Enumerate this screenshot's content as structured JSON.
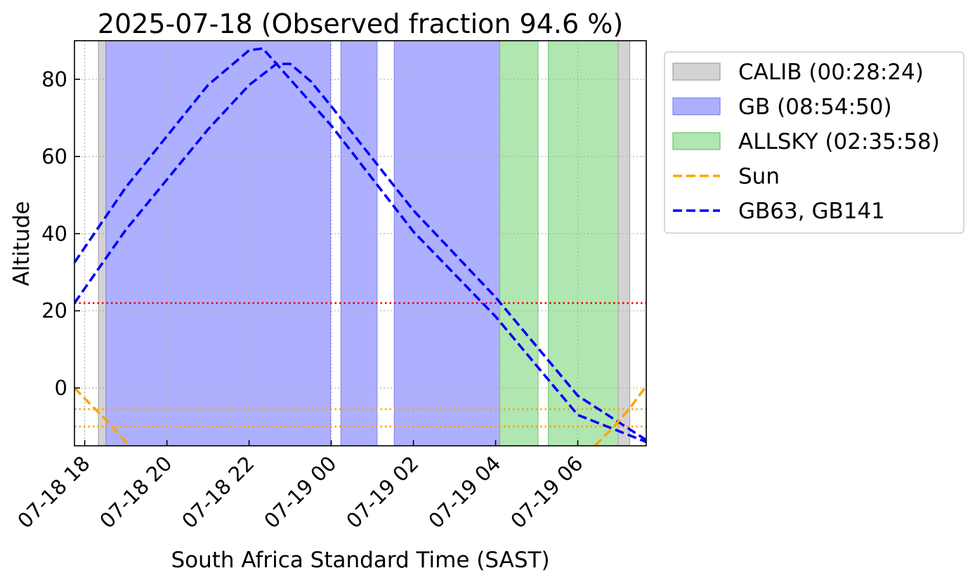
{
  "chart_data": {
    "type": "line",
    "title": "2025-07-18 (Observed fraction 94.6 %)",
    "xlabel": "South Africa Standard Time (SAST)",
    "ylabel": "Altitude",
    "x_axis_type": "datetime",
    "xlim": [
      "2025-07-18T17:45",
      "2025-07-19T07:40"
    ],
    "ylim": [
      -15,
      90
    ],
    "xticks": [
      {
        "t": "2025-07-18T18:00",
        "label": "07-18 18"
      },
      {
        "t": "2025-07-18T20:00",
        "label": "07-18 20"
      },
      {
        "t": "2025-07-18T22:00",
        "label": "07-18 22"
      },
      {
        "t": "2025-07-19T00:00",
        "label": "07-19 00"
      },
      {
        "t": "2025-07-19T02:00",
        "label": "07-19 02"
      },
      {
        "t": "2025-07-19T04:00",
        "label": "07-19 04"
      },
      {
        "t": "2025-07-19T06:00",
        "label": "07-19 06"
      }
    ],
    "yticks": [
      0,
      20,
      40,
      60,
      80
    ],
    "grid": true,
    "legend_position": "outside-right",
    "colors": {
      "calib": "#d3d3d3",
      "gb": "#aeb0ff",
      "allsky": "#b0e6b0",
      "sun": "#ffa500",
      "gb_line": "#0000ff",
      "threshold": "#ff0000"
    },
    "spans": [
      {
        "name": "CALIB",
        "start": "2025-07-18T18:20",
        "end": "2025-07-18T18:31"
      },
      {
        "name": "GB",
        "start": "2025-07-18T18:31",
        "end": "2025-07-18T23:59"
      },
      {
        "name": "GB",
        "start": "2025-07-19T00:14",
        "end": "2025-07-19T01:07"
      },
      {
        "name": "GB",
        "start": "2025-07-19T01:32",
        "end": "2025-07-19T04:06"
      },
      {
        "name": "ALLSKY",
        "start": "2025-07-19T04:06",
        "end": "2025-07-19T05:02"
      },
      {
        "name": "ALLSKY",
        "start": "2025-07-19T05:17",
        "end": "2025-07-19T06:59"
      },
      {
        "name": "CALIB",
        "start": "2025-07-19T06:59",
        "end": "2025-07-19T07:16"
      }
    ],
    "legend": [
      {
        "label": "CALIB (00:28:24)",
        "kind": "patch",
        "color_key": "calib"
      },
      {
        "label": "GB (08:54:50)",
        "kind": "patch",
        "color_key": "gb"
      },
      {
        "label": "ALLSKY (02:35:58)",
        "kind": "patch",
        "color_key": "allsky"
      },
      {
        "label": "Sun",
        "kind": "line",
        "color_key": "sun"
      },
      {
        "label": "GB63, GB141",
        "kind": "line",
        "color_key": "gb_line"
      }
    ],
    "hlines": [
      {
        "y": 22,
        "color_key": "threshold",
        "style": "dotted"
      },
      {
        "y": -5.5,
        "color_key": "sun",
        "style": "dotted"
      },
      {
        "y": -10,
        "color_key": "sun",
        "style": "dotted"
      }
    ],
    "series": [
      {
        "color_key": "gb_line",
        "points": [
          [
            "2025-07-18T17:45",
            32.5
          ],
          [
            "2025-07-18T19:00",
            52
          ],
          [
            "2025-07-18T21:00",
            78.5
          ],
          [
            "2025-07-18T22:00",
            87.5
          ],
          [
            "2025-07-18T22:20",
            88
          ],
          [
            "2025-07-18T23:00",
            80
          ],
          [
            "2025-07-19T00:00",
            68
          ],
          [
            "2025-07-19T02:00",
            40.5
          ],
          [
            "2025-07-19T04:00",
            18.5
          ],
          [
            "2025-07-19T06:00",
            -7
          ],
          [
            "2025-07-19T07:40",
            -14
          ]
        ]
      },
      {
        "color_key": "gb_line",
        "points": [
          [
            "2025-07-18T17:45",
            22
          ],
          [
            "2025-07-18T19:00",
            41
          ],
          [
            "2025-07-18T21:00",
            67
          ],
          [
            "2025-07-18T22:00",
            78.5
          ],
          [
            "2025-07-18T22:40",
            84
          ],
          [
            "2025-07-18T23:00",
            84
          ],
          [
            "2025-07-18T23:30",
            79.5
          ],
          [
            "2025-07-19T00:00",
            73
          ],
          [
            "2025-07-19T02:00",
            46
          ],
          [
            "2025-07-19T04:00",
            23.5
          ],
          [
            "2025-07-19T06:00",
            -2
          ],
          [
            "2025-07-19T07:40",
            -13.5
          ]
        ]
      },
      {
        "color_key": "sun",
        "points": [
          [
            "2025-07-18T17:45",
            0
          ],
          [
            "2025-07-18T18:07",
            -4
          ],
          [
            "2025-07-18T18:35",
            -9
          ],
          [
            "2025-07-18T19:05",
            -15
          ]
        ]
      },
      {
        "color_key": "sun",
        "points": [
          [
            "2025-07-19T06:25",
            -15
          ],
          [
            "2025-07-19T06:53",
            -10
          ],
          [
            "2025-07-19T07:15",
            -5.5
          ],
          [
            "2025-07-19T07:40",
            0.5
          ]
        ]
      }
    ]
  }
}
